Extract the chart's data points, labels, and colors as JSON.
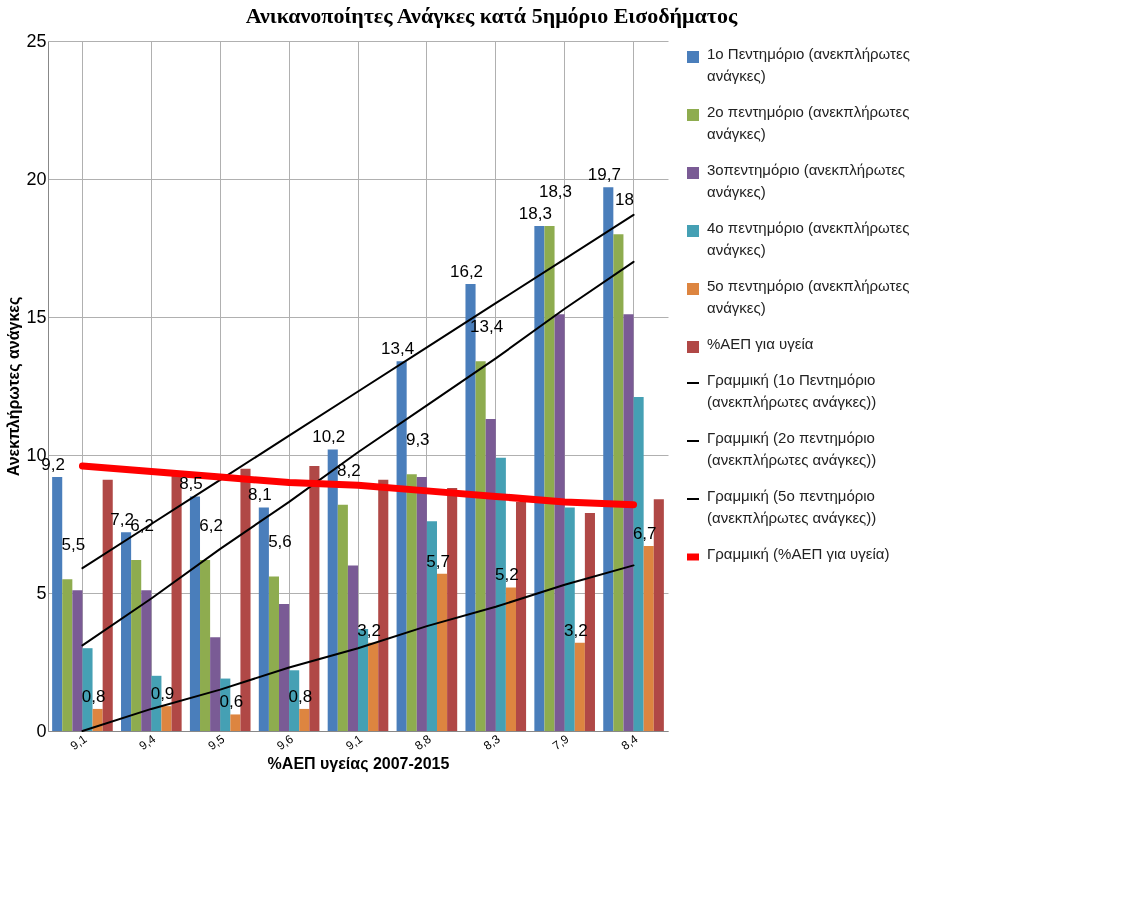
{
  "chart_data": {
    "type": "bar",
    "title": "Ανικανοποίητες Ανάγκες κατά 5ημόριο Εισοδήματος",
    "xlabel": "%ΑΕΠ υγείας 2007-2015",
    "ylabel": "Ανεκπλήρωτες ανάγκες",
    "categories": [
      "9,1",
      "9,4",
      "9,5",
      "9,6",
      "9,1",
      "8,8",
      "8,3",
      "7,9",
      "8,4"
    ],
    "ylim": [
      0,
      25
    ],
    "yticks": [
      0,
      5,
      10,
      15,
      20,
      25
    ],
    "grid": true,
    "legend": "right",
    "series": [
      {
        "name": "1ο Πεντημόριο (ανεκπλήρωτες ανάγκες)",
        "color": "#4a7ebb",
        "values": [
          9.2,
          7.2,
          8.5,
          8.1,
          10.2,
          13.4,
          16.2,
          18.3,
          19.7
        ],
        "value_labels": [
          "9,2",
          "7,2",
          "8,5",
          "8,1",
          "10,2",
          "13,4",
          "16,2",
          "18,3",
          "19,7"
        ]
      },
      {
        "name": "2ο πεντημόριο (ανεκπλήρωτες ανάγκες)",
        "color": "#8eac4f",
        "values": [
          5.5,
          6.2,
          6.2,
          5.6,
          8.2,
          9.3,
          13.4,
          18.3,
          18
        ],
        "value_labels": [
          "5,5",
          "6,2",
          "6,2",
          "5,6",
          "8,2",
          "9,3",
          "13,4",
          "18,3",
          "18"
        ]
      },
      {
        "name": "3οπεντημόριο (ανεκπλήρωτες ανάγκες)",
        "color": "#7a5b95",
        "values": [
          5.1,
          5.1,
          3.4,
          4.6,
          6.0,
          9.2,
          11.3,
          15.1,
          15.1
        ]
      },
      {
        "name": "4ο πεντημόριο (ανεκπλήρωτες ανάγκες)",
        "color": "#45a0b4",
        "values": [
          3.0,
          2.0,
          1.9,
          2.2,
          3.7,
          7.6,
          9.9,
          8.1,
          12.1
        ]
      },
      {
        "name": "5ο πεντημόριο (ανεκπλήρωτες ανάγκες)",
        "color": "#dd8540",
        "values": [
          0.8,
          0.9,
          0.6,
          0.8,
          3.2,
          5.7,
          5.2,
          3.2,
          6.7
        ],
        "value_labels": [
          "0,8",
          "0,9",
          "0,6",
          "0,8",
          "3,2",
          "5,7",
          "5,2",
          "3,2",
          "6,7"
        ]
      },
      {
        "name": "%ΑΕΠ για υγεία",
        "color": "#b04846",
        "values": [
          9.1,
          9.4,
          9.5,
          9.6,
          9.1,
          8.8,
          8.3,
          7.9,
          8.4
        ]
      },
      {
        "name": "Γραμμική (1ο Πεντημόριο (ανεκπλήρωτες ανάγκες))",
        "type": "line",
        "color": "#000000",
        "values": [
          5.9,
          7.5,
          9.1,
          10.7,
          12.3,
          13.9,
          15.5,
          17.1,
          18.7
        ]
      },
      {
        "name": "Γραμμική (2ο πεντημόριο (ανεκπλήρωτες ανάγκες))",
        "type": "line",
        "color": "#000000",
        "values": [
          3.1,
          4.8,
          6.6,
          8.3,
          10.1,
          11.8,
          13.5,
          15.3,
          17.0
        ]
      },
      {
        "name": "Γραμμική (5ο πεντημόριο (ανεκπλήρωτες ανάγκες))",
        "type": "line",
        "color": "#000000",
        "values": [
          0.0,
          0.8,
          1.5,
          2.3,
          3.0,
          3.8,
          4.5,
          5.3,
          6.0
        ]
      },
      {
        "name": "Γραμμική (%ΑΕΠ για υγεία)",
        "type": "line",
        "color": "#ff0000",
        "values": [
          9.6,
          9.4,
          9.2,
          9.0,
          8.9,
          8.7,
          8.5,
          8.3,
          8.2
        ]
      }
    ]
  }
}
